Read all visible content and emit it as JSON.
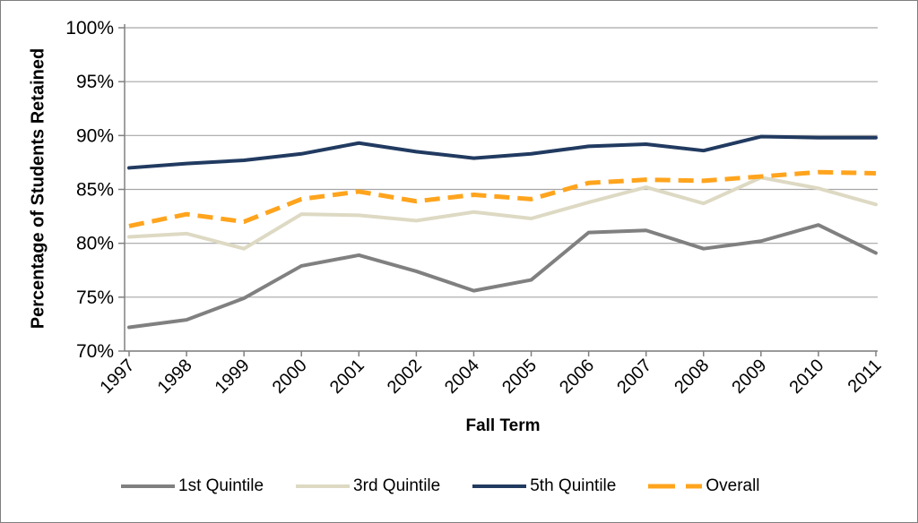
{
  "frame": {
    "background": "#FFFFFF",
    "border_color": "#7F7F7F"
  },
  "chart_data": {
    "type": "line",
    "title": "",
    "xlabel": "Fall Term",
    "ylabel": "Percentage of Students Retained",
    "ylim": [
      70,
      100
    ],
    "ytick_step": 5,
    "ytick_suffix": "%",
    "grid": true,
    "legend_position": "bottom",
    "axis_color": "#808080",
    "gridline_color": "#A6A6A6",
    "text_color": "#000000",
    "categories": [
      "1997",
      "1998",
      "1999",
      "2000",
      "2001",
      "2002",
      "2004",
      "2005",
      "2006",
      "2007",
      "2008",
      "2009",
      "2010",
      "2011"
    ],
    "series": [
      {
        "name": "1st Quintile",
        "color": "#808080",
        "dash": "solid",
        "values": [
          72.2,
          72.9,
          74.9,
          77.9,
          78.9,
          77.4,
          75.6,
          76.6,
          81.0,
          81.2,
          79.5,
          80.2,
          81.7,
          79.1
        ]
      },
      {
        "name": "3rd Quintile",
        "color": "#DDD9C3",
        "dash": "solid",
        "values": [
          80.6,
          80.9,
          79.5,
          82.7,
          82.6,
          82.1,
          82.9,
          82.3,
          83.8,
          85.2,
          83.7,
          86.1,
          85.1,
          83.6
        ]
      },
      {
        "name": "5th Quintile",
        "color": "#213A60",
        "dash": "solid",
        "values": [
          87.0,
          87.4,
          87.7,
          88.3,
          89.3,
          88.5,
          87.9,
          88.3,
          89.0,
          89.2,
          88.6,
          89.9,
          89.8,
          89.8
        ]
      },
      {
        "name": "Overall",
        "color": "#FFA41D",
        "dash": "dashed",
        "values": [
          81.6,
          82.7,
          82.0,
          84.1,
          84.8,
          83.9,
          84.5,
          84.1,
          85.6,
          85.9,
          85.8,
          86.2,
          86.6,
          86.5
        ]
      }
    ]
  }
}
